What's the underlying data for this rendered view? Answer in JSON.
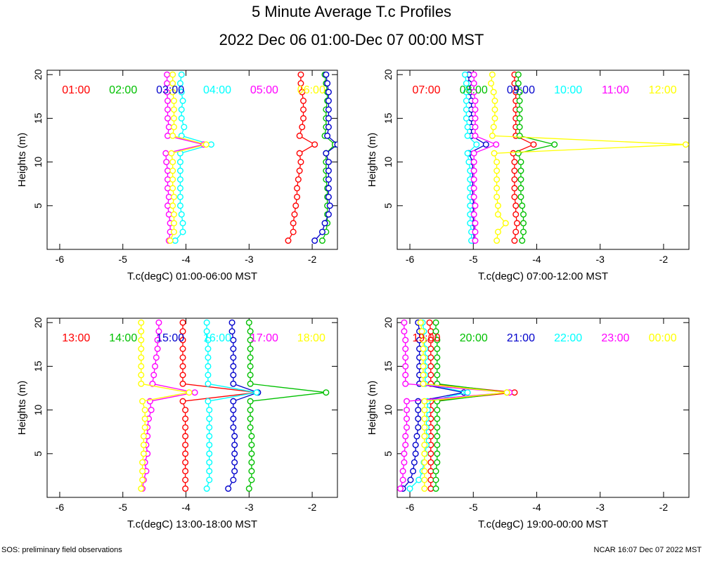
{
  "title": "5 Minute Average T.c Profiles",
  "subtitle": "2022 Dec 06 01:00-Dec 07 00:00 MST",
  "footer_left": "SOS: preliminary field observations",
  "footer_right": "NCAR 16:07 Dec 07 2022 MST",
  "colors": [
    "#ff0000",
    "#00c000",
    "#0000cc",
    "#00ffff",
    "#ff00ff",
    "#ffff00"
  ],
  "chart_data": [
    {
      "type": "line",
      "xlabel": "T.c(degC) 01:00-06:00 MST",
      "ylabel": "Heights (m)",
      "xlim": [
        -6.2,
        -1.6
      ],
      "ylim": [
        0,
        20.5
      ],
      "xticks": [
        -6,
        -5,
        -4,
        -3,
        -2
      ],
      "yticks": [
        5,
        10,
        15,
        20
      ],
      "heights": [
        1,
        2,
        3,
        4,
        5,
        6,
        7,
        8,
        9,
        10,
        11,
        12,
        13,
        14,
        15,
        16,
        17,
        18,
        19,
        20
      ],
      "series": [
        {
          "name": "01:00",
          "values": [
            -2.38,
            -2.3,
            -2.3,
            -2.28,
            -2.26,
            -2.24,
            -2.24,
            -2.22,
            -2.2,
            -2.18,
            -2.2,
            -1.96,
            -2.2,
            -2.16,
            -2.14,
            -2.14,
            -2.14,
            -2.16,
            -2.18,
            -2.18
          ]
        },
        {
          "name": "02:00",
          "values": [
            -1.84,
            -1.78,
            -1.76,
            -1.76,
            -1.76,
            -1.76,
            -1.76,
            -1.78,
            -1.78,
            -1.78,
            -1.78,
            -1.64,
            -1.8,
            -1.78,
            -1.78,
            -1.78,
            -1.76,
            -1.76,
            -1.78,
            -1.8
          ]
        },
        {
          "name": "03:00",
          "values": [
            -1.96,
            -1.84,
            -1.8,
            -1.74,
            -1.72,
            -1.74,
            -1.74,
            -1.74,
            -1.74,
            -1.74,
            -1.78,
            -1.6,
            -1.76,
            -1.74,
            -1.74,
            -1.74,
            -1.74,
            -1.74,
            -1.76,
            -1.78
          ]
        },
        {
          "name": "04:00",
          "values": [
            -4.17,
            -4.05,
            -4.05,
            -4.07,
            -4.09,
            -4.09,
            -4.09,
            -4.09,
            -4.09,
            -4.09,
            -4.09,
            -3.6,
            -4.07,
            -4.03,
            -4.07,
            -4.07,
            -4.05,
            -4.07,
            -4.09,
            -4.07
          ]
        },
        {
          "name": "05:00",
          "values": [
            -4.27,
            -4.25,
            -4.25,
            -4.27,
            -4.29,
            -4.27,
            -4.29,
            -4.29,
            -4.29,
            -4.31,
            -4.32,
            -3.72,
            -4.29,
            -4.27,
            -4.29,
            -4.29,
            -4.29,
            -4.3,
            -4.3,
            -4.3
          ]
        },
        {
          "name": "06:00",
          "values": [
            -4.25,
            -4.19,
            -4.19,
            -4.19,
            -4.21,
            -4.19,
            -4.21,
            -4.21,
            -4.21,
            -4.21,
            -4.23,
            -3.68,
            -4.21,
            -4.19,
            -4.19,
            -4.19,
            -4.19,
            -4.21,
            -4.21,
            -4.21
          ]
        }
      ]
    },
    {
      "type": "line",
      "xlabel": "T.c(degC) 07:00-12:00 MST",
      "ylabel": "Heights (m)",
      "xlim": [
        -6.2,
        -1.6
      ],
      "ylim": [
        0,
        20.5
      ],
      "xticks": [
        -6,
        -5,
        -4,
        -3,
        -2
      ],
      "yticks": [
        5,
        10,
        15,
        20
      ],
      "heights": [
        1,
        2,
        3,
        4,
        5,
        6,
        7,
        8,
        9,
        10,
        11,
        12,
        13,
        14,
        15,
        16,
        17,
        18,
        19,
        20
      ],
      "series": [
        {
          "name": "07:00",
          "values": [
            -4.35,
            -4.33,
            -4.31,
            -4.33,
            -4.33,
            -4.35,
            -4.35,
            -4.35,
            -4.35,
            -4.35,
            -4.37,
            -4.05,
            -4.33,
            -4.33,
            -4.33,
            -4.33,
            -4.33,
            -4.33,
            -4.35,
            -4.35
          ]
        },
        {
          "name": "08:00",
          "values": [
            -4.23,
            -4.21,
            -4.21,
            -4.21,
            -4.23,
            -4.25,
            -4.25,
            -4.25,
            -4.25,
            -4.25,
            -4.29,
            -3.72,
            -4.27,
            -4.27,
            -4.27,
            -4.27,
            -4.27,
            -4.27,
            -4.29,
            -4.29
          ]
        },
        {
          "name": "09:00",
          "values": [
            -4.99,
            -4.99,
            -4.99,
            -5.01,
            -4.99,
            -5.01,
            -5.01,
            -5.01,
            -5.01,
            -5.01,
            -5.07,
            -4.8,
            -5.03,
            -5.03,
            -5.03,
            -5.03,
            -5.03,
            -5.05,
            -5.07,
            -5.07
          ]
        },
        {
          "name": "10:00",
          "values": [
            -5.03,
            -5.03,
            -5.05,
            -5.05,
            -5.05,
            -5.05,
            -5.05,
            -5.05,
            -5.05,
            -5.07,
            -5.09,
            -4.95,
            -5.09,
            -5.09,
            -5.11,
            -5.11,
            -5.11,
            -5.11,
            -5.11,
            -5.13
          ]
        },
        {
          "name": "11:00",
          "values": [
            -4.97,
            -4.97,
            -4.97,
            -4.99,
            -4.97,
            -4.99,
            -4.99,
            -4.99,
            -4.99,
            -4.99,
            -4.99,
            -4.64,
            -4.97,
            -4.97,
            -4.97,
            -4.97,
            -4.97,
            -4.99,
            -4.99,
            -4.99
          ]
        },
        {
          "name": "12:00",
          "values": [
            -4.63,
            -4.61,
            -4.49,
            -4.61,
            -4.61,
            -4.63,
            -4.63,
            -4.63,
            -4.63,
            -4.63,
            -4.67,
            -1.65,
            -4.7,
            -4.68,
            -4.66,
            -4.66,
            -4.66,
            -4.68,
            -4.72,
            -4.7
          ]
        }
      ]
    },
    {
      "type": "line",
      "xlabel": "T.c(degC) 13:00-18:00 MST",
      "ylabel": "Heights (m)",
      "xlim": [
        -6.2,
        -1.6
      ],
      "ylim": [
        0,
        20.5
      ],
      "xticks": [
        -6,
        -5,
        -4,
        -3,
        -2
      ],
      "yticks": [
        5,
        10,
        15,
        20
      ],
      "heights": [
        1,
        2,
        3,
        4,
        5,
        6,
        7,
        8,
        9,
        10,
        11,
        12,
        13,
        14,
        15,
        16,
        17,
        18,
        19,
        20
      ],
      "series": [
        {
          "name": "13:00",
          "values": [
            -4.01,
            -4.01,
            -4.01,
            -4.01,
            -4.01,
            -4.01,
            -4.01,
            -4.01,
            -4.01,
            -4.01,
            -4.05,
            -2.87,
            -4.05,
            -4.05,
            -4.05,
            -4.05,
            -4.05,
            -4.05,
            -4.05,
            -4.05
          ]
        },
        {
          "name": "14:00",
          "values": [
            -3.0,
            -2.96,
            -2.96,
            -2.96,
            -2.96,
            -2.96,
            -2.96,
            -2.98,
            -2.98,
            -2.98,
            -2.98,
            -1.78,
            -2.98,
            -2.98,
            -2.98,
            -2.98,
            -2.98,
            -2.98,
            -2.98,
            -3.0
          ]
        },
        {
          "name": "15:00",
          "values": [
            -3.33,
            -3.25,
            -3.23,
            -3.23,
            -3.23,
            -3.23,
            -3.23,
            -3.25,
            -3.25,
            -3.25,
            -3.25,
            -2.86,
            -3.25,
            -3.25,
            -3.25,
            -3.25,
            -3.25,
            -3.25,
            -3.27,
            -3.27
          ]
        },
        {
          "name": "16:00",
          "values": [
            -3.67,
            -3.63,
            -3.63,
            -3.63,
            -3.63,
            -3.63,
            -3.63,
            -3.63,
            -3.63,
            -3.63,
            -3.65,
            -2.88,
            -3.65,
            -3.65,
            -3.65,
            -3.65,
            -3.65,
            -3.65,
            -3.67,
            -3.67
          ]
        },
        {
          "name": "17:00",
          "values": [
            -4.69,
            -4.67,
            -4.63,
            -4.65,
            -4.61,
            -4.63,
            -4.61,
            -4.61,
            -4.59,
            -4.55,
            -4.57,
            -3.86,
            -4.53,
            -4.51,
            -4.49,
            -4.47,
            -4.45,
            -4.45,
            -4.43,
            -4.43
          ]
        },
        {
          "name": "18:00",
          "values": [
            -4.71,
            -4.69,
            -4.69,
            -4.69,
            -4.67,
            -4.67,
            -4.67,
            -4.65,
            -4.65,
            -4.65,
            -4.69,
            -3.95,
            -4.71,
            -4.71,
            -4.71,
            -4.71,
            -4.71,
            -4.71,
            -4.71,
            -4.71
          ]
        }
      ]
    },
    {
      "type": "line",
      "xlabel": "T.c(degC) 19:00-00:00 MST",
      "ylabel": "Heights (m)",
      "xlim": [
        -6.2,
        -1.6
      ],
      "ylim": [
        0,
        20.5
      ],
      "xticks": [
        -6,
        -5,
        -4,
        -3,
        -2
      ],
      "yticks": [
        5,
        10,
        15,
        20
      ],
      "heights": [
        1,
        2,
        3,
        4,
        5,
        6,
        7,
        8,
        9,
        10,
        11,
        12,
        13,
        14,
        15,
        16,
        17,
        18,
        19,
        20
      ],
      "series": [
        {
          "name": "19:00",
          "values": [
            -5.67,
            -5.67,
            -5.67,
            -5.67,
            -5.67,
            -5.67,
            -5.67,
            -5.67,
            -5.67,
            -5.67,
            -5.67,
            -4.35,
            -5.67,
            -5.67,
            -5.67,
            -5.67,
            -5.67,
            -5.67,
            -5.67,
            -5.69
          ]
        },
        {
          "name": "20:00",
          "values": [
            -5.59,
            -5.59,
            -5.59,
            -5.57,
            -5.57,
            -5.57,
            -5.57,
            -5.57,
            -5.57,
            -5.57,
            -5.57,
            -4.47,
            -5.57,
            -5.57,
            -5.57,
            -5.57,
            -5.57,
            -5.57,
            -5.59,
            -5.59
          ]
        },
        {
          "name": "21:00",
          "values": [
            -6.11,
            -5.99,
            -5.95,
            -5.93,
            -5.91,
            -5.91,
            -5.89,
            -5.87,
            -5.87,
            -5.87,
            -5.87,
            -5.15,
            -5.85,
            -5.85,
            -5.85,
            -5.85,
            -5.85,
            -5.85,
            -5.85,
            -5.87
          ]
        },
        {
          "name": "22:00",
          "values": [
            -6.0,
            -5.86,
            -5.8,
            -5.78,
            -5.76,
            -5.74,
            -5.74,
            -5.74,
            -5.74,
            -5.72,
            -5.72,
            -5.09,
            -5.76,
            -5.76,
            -5.76,
            -5.76,
            -5.76,
            -5.78,
            -5.78,
            -5.8
          ]
        },
        {
          "name": "23:00",
          "values": [
            -6.15,
            -6.11,
            -6.11,
            -6.09,
            -6.09,
            -6.07,
            -6.07,
            -6.05,
            -6.05,
            -6.05,
            -6.05,
            -4.43,
            -6.07,
            -6.07,
            -6.07,
            -6.07,
            -6.07,
            -6.07,
            -6.09,
            -6.09
          ]
        },
        {
          "name": "00:00",
          "values": [
            -5.77,
            -5.77,
            -5.77,
            -5.77,
            -5.77,
            -5.77,
            -5.77,
            -5.77,
            -5.77,
            -5.77,
            -5.77,
            -4.47,
            -5.79,
            -5.79,
            -5.79,
            -5.79,
            -5.79,
            -5.79,
            -5.81,
            -5.83
          ]
        }
      ]
    }
  ]
}
